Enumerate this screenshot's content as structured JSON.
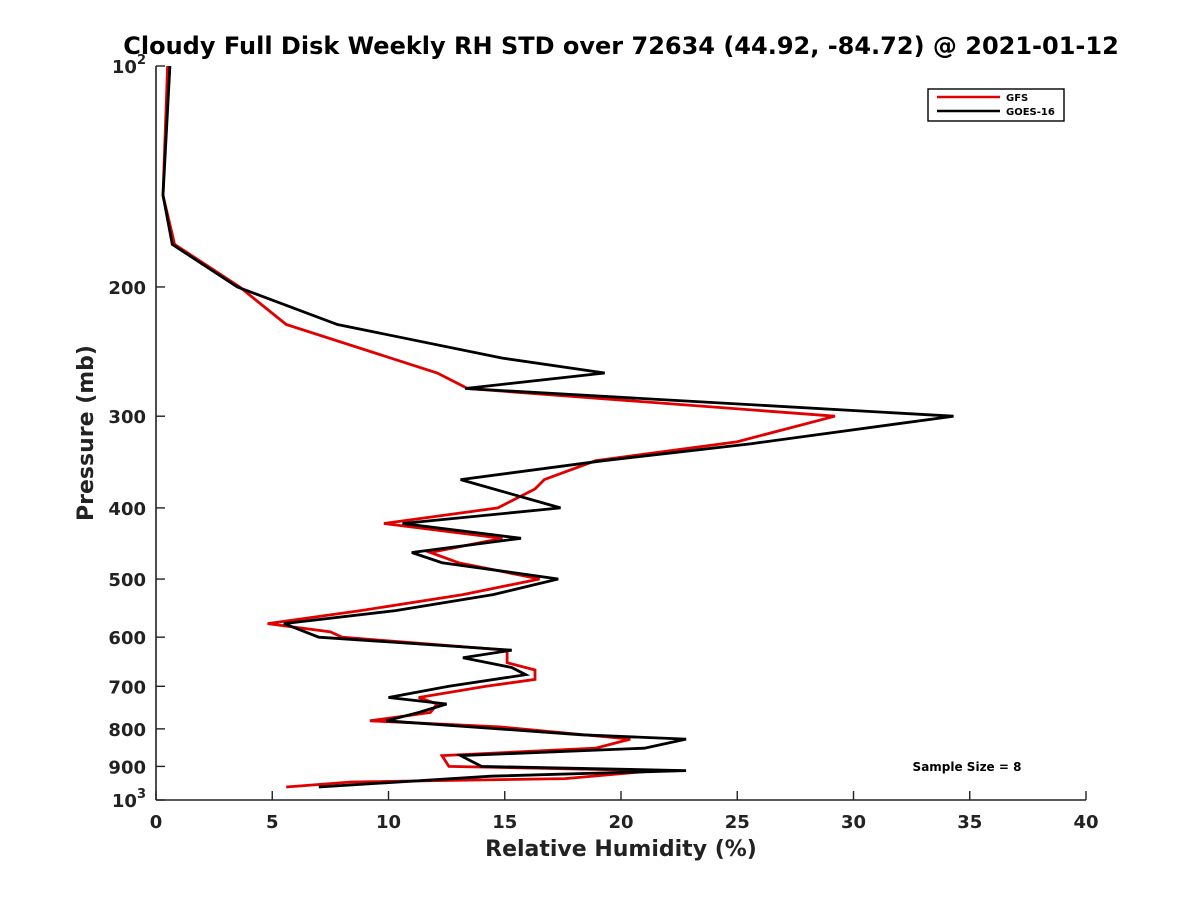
{
  "chart_data": {
    "type": "line",
    "title": "Cloudy Full Disk Weekly RH STD over 72634 (44.92, -84.72) @ 2021-01-12",
    "xlabel": "Relative Humidity (%)",
    "ylabel": "Pressure (mb)",
    "xlim": [
      0,
      40
    ],
    "ylim": [
      100,
      1000
    ],
    "yscale": "log",
    "y_reversed": true,
    "grid": false,
    "legend_position": "top-right",
    "x_ticks": [
      "0",
      "5",
      "10",
      "15",
      "20",
      "25",
      "30",
      "35",
      "40"
    ],
    "y_ticks": [
      {
        "value": 100,
        "base": "10",
        "exp": "2"
      },
      {
        "value": 200,
        "label": "200"
      },
      {
        "value": 300,
        "label": "300"
      },
      {
        "value": 400,
        "label": "400"
      },
      {
        "value": 500,
        "label": "500"
      },
      {
        "value": 600,
        "label": "600"
      },
      {
        "value": 700,
        "label": "700"
      },
      {
        "value": 800,
        "label": "800"
      },
      {
        "value": 900,
        "label": "900"
      },
      {
        "value": 1000,
        "base": "10",
        "exp": "3"
      }
    ],
    "annotation": "Sample Size = 8",
    "series": [
      {
        "name": "GFS",
        "color": "#e00000",
        "points": [
          [
            0.5,
            100
          ],
          [
            0.3,
            150
          ],
          [
            0.8,
            175
          ],
          [
            3.6,
            200
          ],
          [
            5.6,
            225
          ],
          [
            12.1,
            262
          ],
          [
            13.4,
            275
          ],
          [
            29.2,
            300
          ],
          [
            25,
            325
          ],
          [
            18.9,
            345
          ],
          [
            16.7,
            366
          ],
          [
            16.3,
            377
          ],
          [
            14.7,
            400
          ],
          [
            9.8,
            420
          ],
          [
            14.9,
            440
          ],
          [
            11.8,
            460
          ],
          [
            13,
            475
          ],
          [
            16.5,
            500
          ],
          [
            13.2,
            525
          ],
          [
            8.8,
            552
          ],
          [
            4.8,
            575
          ],
          [
            7.5,
            590
          ],
          [
            8,
            600
          ],
          [
            15.1,
            625
          ],
          [
            15.1,
            650
          ],
          [
            16.3,
            665
          ],
          [
            16.3,
            685
          ],
          [
            14.2,
            700
          ],
          [
            11.3,
            725
          ],
          [
            12.1,
            740
          ],
          [
            11.8,
            760
          ],
          [
            9.2,
            780
          ],
          [
            14.8,
            795
          ],
          [
            20.4,
            826
          ],
          [
            18.9,
            850
          ],
          [
            12.3,
            870
          ],
          [
            12.6,
            900
          ],
          [
            21.5,
            912
          ],
          [
            17.6,
            935
          ],
          [
            8.4,
            945
          ],
          [
            5.6,
            960
          ]
        ]
      },
      {
        "name": "GOES-16",
        "color": "#000000",
        "points": [
          [
            0.6,
            100
          ],
          [
            0.3,
            150
          ],
          [
            0.7,
            175
          ],
          [
            3.5,
            200
          ],
          [
            7.8,
            225
          ],
          [
            14.9,
            250
          ],
          [
            19.3,
            262
          ],
          [
            13.3,
            275
          ],
          [
            34.3,
            300
          ],
          [
            25.6,
            327
          ],
          [
            19.2,
            345
          ],
          [
            13.1,
            366
          ],
          [
            17.4,
            400
          ],
          [
            10.6,
            420
          ],
          [
            15.7,
            440
          ],
          [
            11,
            460
          ],
          [
            12.3,
            475
          ],
          [
            17.3,
            500
          ],
          [
            14.5,
            525
          ],
          [
            10.3,
            552
          ],
          [
            5.5,
            575
          ],
          [
            7,
            600
          ],
          [
            15.3,
            625
          ],
          [
            13.2,
            640
          ],
          [
            15.3,
            660
          ],
          [
            15.9,
            675
          ],
          [
            12.6,
            700
          ],
          [
            10,
            725
          ],
          [
            12.5,
            740
          ],
          [
            11.3,
            760
          ],
          [
            9.9,
            780
          ],
          [
            18.3,
            815
          ],
          [
            22.8,
            826
          ],
          [
            21,
            850
          ],
          [
            13.1,
            870
          ],
          [
            14,
            900
          ],
          [
            22.8,
            912
          ],
          [
            14.4,
            928
          ],
          [
            7,
            960
          ]
        ]
      }
    ]
  }
}
